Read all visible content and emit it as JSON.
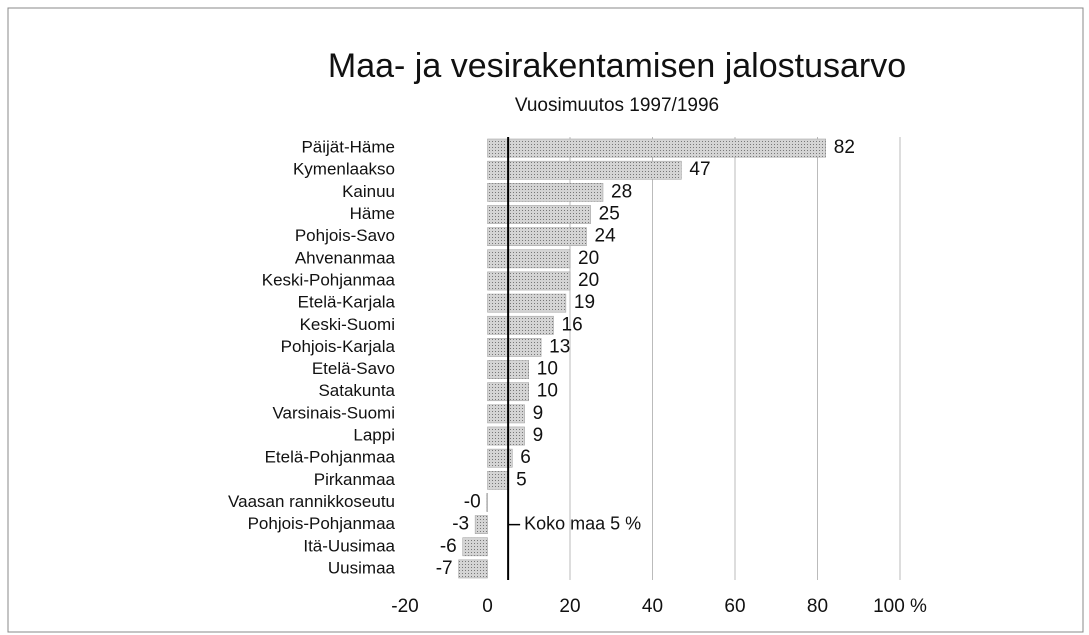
{
  "chart_data": {
    "type": "hbar",
    "title": "Maa- ja vesirakentamisen jalostusarvo",
    "subtitle": "Vuosimuutos 1997/1996",
    "categories": [
      "Päijät-Häme",
      "Kymenlaakso",
      "Kainuu",
      "Häme",
      "Pohjois-Savo",
      "Ahvenanmaa",
      "Keski-Pohjanmaa",
      "Etelä-Karjala",
      "Keski-Suomi",
      "Pohjois-Karjala",
      "Etelä-Savo",
      "Satakunta",
      "Varsinais-Suomi",
      "Lappi",
      "Etelä-Pohjanmaa",
      "Pirkanmaa",
      "Vaasan rannikkoseutu",
      "Pohjois-Pohjanmaa",
      "Itä-Uusimaa",
      "Uusimaa"
    ],
    "values": [
      82,
      47,
      28,
      25,
      24,
      20,
      20,
      19,
      16,
      13,
      10,
      10,
      9,
      9,
      6,
      5,
      -0.2,
      -3,
      -6,
      -7
    ],
    "value_labels": [
      "82",
      "47",
      "28",
      "25",
      "24",
      "20",
      "20",
      "19",
      "16",
      "13",
      "10",
      "10",
      "9",
      "9",
      "6",
      "5",
      "-0",
      "-3",
      "-6",
      "-7"
    ],
    "color": "#c8c8c8",
    "xlim": [
      -20,
      100
    ],
    "xticks": [
      -20,
      0,
      20,
      40,
      60,
      80,
      {
        "value": 100,
        "label": "100 %"
      }
    ],
    "grid": true,
    "reference": {
      "value": 5,
      "label": "Koko maa 5 %"
    }
  }
}
